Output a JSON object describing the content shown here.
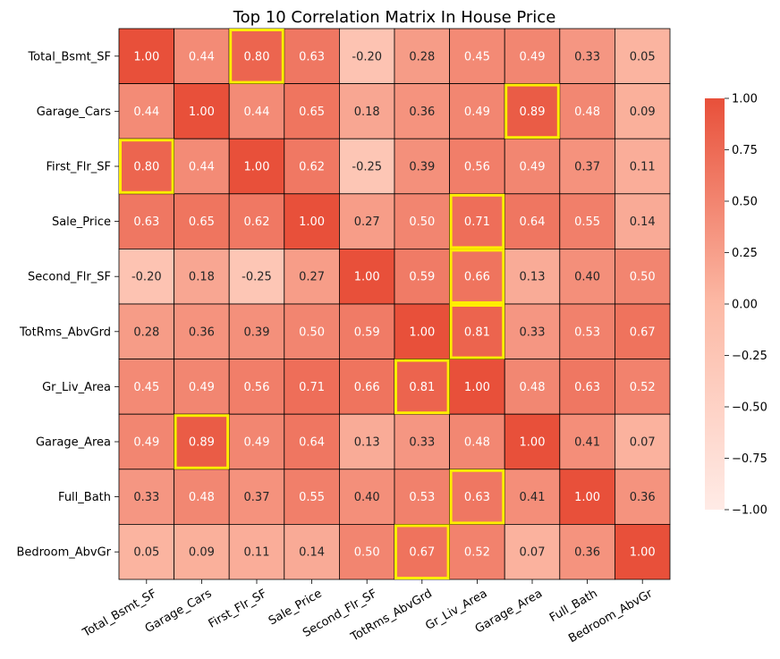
{
  "chart_data": {
    "type": "heatmap",
    "title": "Top 10 Correlation Matrix In House Price",
    "rows": [
      "Total_Bsmt_SF",
      "Garage_Cars",
      "First_Flr_SF",
      "Sale_Price",
      "Second_Flr_SF",
      "TotRms_AbvGrd",
      "Gr_Liv_Area",
      "Garage_Area",
      "Full_Bath",
      "Bedroom_AbvGr"
    ],
    "columns": [
      "Total_Bsmt_SF",
      "Garage_Cars",
      "First_Flr_SF",
      "Sale_Price",
      "Second_Flr_SF",
      "TotRms_AbvGrd",
      "Gr_Liv_Area",
      "Garage_Area",
      "Full_Bath",
      "Bedroom_AbvGr"
    ],
    "values": [
      [
        1.0,
        0.44,
        0.8,
        0.63,
        -0.2,
        0.28,
        0.45,
        0.49,
        0.33,
        0.05
      ],
      [
        0.44,
        1.0,
        0.44,
        0.65,
        0.18,
        0.36,
        0.49,
        0.89,
        0.48,
        0.09
      ],
      [
        0.8,
        0.44,
        1.0,
        0.62,
        -0.25,
        0.39,
        0.56,
        0.49,
        0.37,
        0.11
      ],
      [
        0.63,
        0.65,
        0.62,
        1.0,
        0.27,
        0.5,
        0.71,
        0.64,
        0.55,
        0.14
      ],
      [
        -0.2,
        0.18,
        -0.25,
        0.27,
        1.0,
        0.59,
        0.66,
        0.13,
        0.4,
        0.5
      ],
      [
        0.28,
        0.36,
        0.39,
        0.5,
        0.59,
        1.0,
        0.81,
        0.33,
        0.53,
        0.67
      ],
      [
        0.45,
        0.49,
        0.56,
        0.71,
        0.66,
        0.81,
        1.0,
        0.48,
        0.63,
        0.52
      ],
      [
        0.49,
        0.89,
        0.49,
        0.64,
        0.13,
        0.33,
        0.48,
        1.0,
        0.41,
        0.07
      ],
      [
        0.33,
        0.48,
        0.37,
        0.55,
        0.4,
        0.53,
        0.63,
        0.41,
        1.0,
        0.36
      ],
      [
        0.05,
        0.09,
        0.11,
        0.14,
        0.5,
        0.67,
        0.52,
        0.07,
        0.36,
        1.0
      ]
    ],
    "value_format": "0.00",
    "highlighted_cells": [
      [
        0,
        2
      ],
      [
        1,
        7
      ],
      [
        2,
        0
      ],
      [
        3,
        6
      ],
      [
        4,
        6
      ],
      [
        5,
        6
      ],
      [
        6,
        5
      ],
      [
        7,
        1
      ],
      [
        8,
        6
      ],
      [
        9,
        5
      ]
    ],
    "highlight_color": "#ffee00",
    "colorbar": {
      "vmin": -1.0,
      "vmax": 1.0,
      "ticks": [
        "1.00",
        "0.75",
        "0.50",
        "0.25",
        "0.00",
        "−0.25",
        "−0.50",
        "−0.75",
        "−1.00"
      ],
      "tick_values": [
        1.0,
        0.75,
        0.5,
        0.25,
        0.0,
        -0.25,
        -0.5,
        -0.75,
        -1.0
      ],
      "colors": {
        "low": "#ffebe6",
        "mid": "#fcb9a5",
        "high": "#e8503a"
      }
    },
    "grid_line_color": "#000000",
    "legend": "colorbar-right"
  }
}
